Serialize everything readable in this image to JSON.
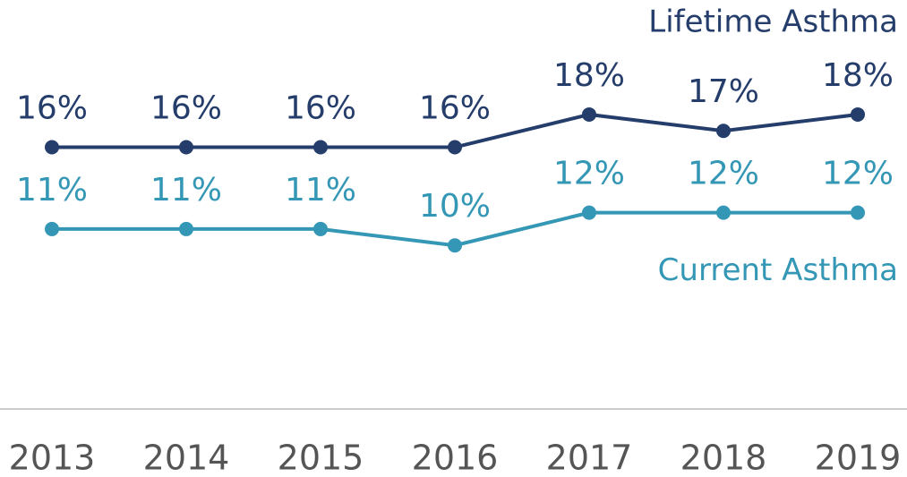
{
  "chart_data": {
    "type": "line",
    "categories": [
      "2013",
      "2014",
      "2015",
      "2016",
      "2017",
      "2018",
      "2019"
    ],
    "series": [
      {
        "name": "Lifetime Asthma",
        "color": "#253d6b",
        "values": [
          16,
          16,
          16,
          16,
          18,
          17,
          18
        ],
        "value_labels": [
          "16%",
          "16%",
          "16%",
          "16%",
          "18%",
          "17%",
          "18%"
        ]
      },
      {
        "name": "Current Asthma",
        "color": "#3497b5",
        "values": [
          11,
          11,
          11,
          10,
          12,
          12,
          12
        ],
        "value_labels": [
          "11%",
          "11%",
          "11%",
          "10%",
          "12%",
          "12%",
          "12%"
        ]
      }
    ],
    "ylim": [
      0,
      25
    ]
  }
}
